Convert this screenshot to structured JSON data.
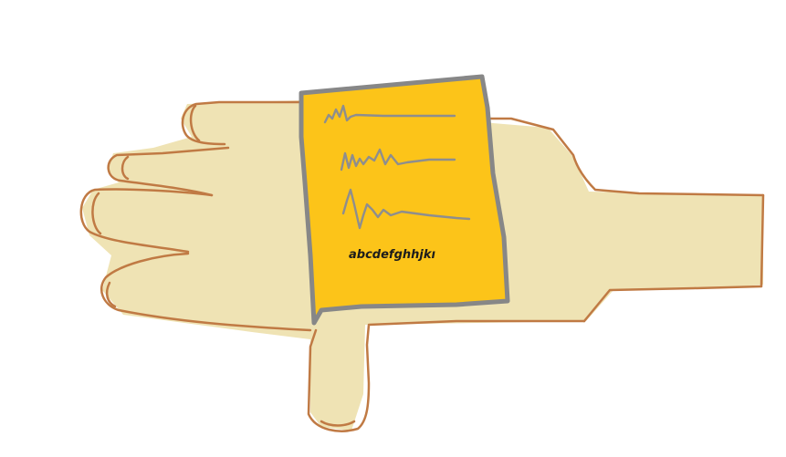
{
  "note": {
    "caption": "abcdefghhjkı"
  },
  "colors": {
    "skin_fill": "#efe3b4",
    "skin_outline": "#c07a44",
    "paper_fill": "#fcc419",
    "paper_border": "#878787",
    "wave_line": "#8e8e8e"
  }
}
